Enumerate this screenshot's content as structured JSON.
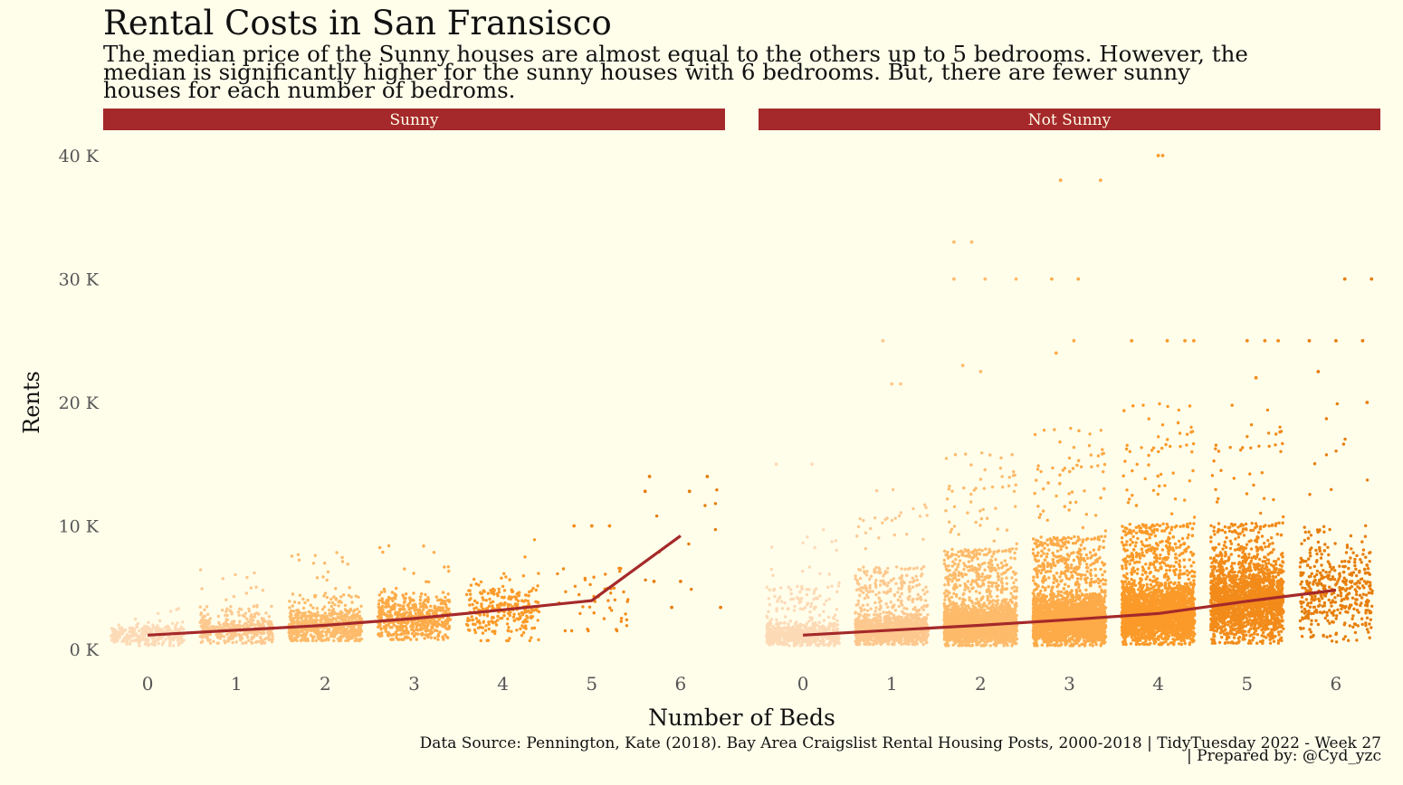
{
  "title": "Rental Costs in San Fransisco",
  "subtitle": "The median price of the Sunny houses are almost equal to the others up to 5 bedrooms. However, the median is significantly higher for the sunny houses with 6 bedrooms. But, there are fewer sunny houses for each number of bedroms.",
  "caption": "Data Source: Pennington, Kate (2018). Bay Area Craigslist Rental Housing Posts, 2000-2018 | TidyTuesday 2022 - Week 27",
  "credit": "| Prepared by: @Cyd_yzc",
  "colors": {
    "background": "#fffeeb",
    "strip": "#a5292a",
    "median_line": "#a5292a",
    "beds": [
      "#fddab6",
      "#fdc88e",
      "#fdbb6b",
      "#fdaa48",
      "#fb9a29",
      "#f28b1a",
      "#e67e0d"
    ]
  },
  "chart_data": {
    "type": "scatter",
    "xlabel": "Number of Beds",
    "ylabel": "Rents",
    "ylim": [
      0,
      40000
    ],
    "y_ticks": [
      {
        "value": 0,
        "label": "0 K"
      },
      {
        "value": 10000,
        "label": "10 K"
      },
      {
        "value": 20000,
        "label": "20 K"
      },
      {
        "value": 30000,
        "label": "30 K"
      },
      {
        "value": 40000,
        "label": "40 K"
      }
    ],
    "categories": [
      "0",
      "1",
      "2",
      "3",
      "4",
      "5",
      "6"
    ],
    "grid": false,
    "panels": [
      {
        "name": "Sunny",
        "median_rent": [
          1150,
          1550,
          1950,
          2500,
          3200,
          3950,
          9200
        ],
        "point_count": [
          300,
          380,
          650,
          560,
          260,
          45,
          9
        ],
        "rent_range": [
          [
            300,
            3400
          ],
          [
            500,
            6500
          ],
          [
            700,
            8300
          ],
          [
            800,
            8500
          ],
          [
            700,
            9000
          ],
          [
            1500,
            10000
          ],
          [
            3500,
            14000
          ]
        ],
        "outliers": [
          [],
          [],
          [],
          [],
          [],
          [
            [
              0.0,
              10000
            ],
            [
              0.2,
              10000
            ],
            [
              -0.2,
              10000
            ]
          ],
          [
            [
              -0.35,
              14000
            ],
            [
              0.3,
              14000
            ],
            [
              -0.4,
              12800
            ],
            [
              0.1,
              12800
            ],
            [
              0.0,
              5500
            ],
            [
              -0.3,
              5500
            ],
            [
              -0.1,
              3400
            ],
            [
              0.45,
              3400
            ]
          ]
        ]
      },
      {
        "name": "Not Sunny",
        "median_rent": [
          1150,
          1550,
          1950,
          2400,
          2900,
          3900,
          4800
        ],
        "point_count": [
          700,
          1400,
          2600,
          3200,
          3000,
          2000,
          420
        ],
        "rent_range": [
          [
            300,
            10000
          ],
          [
            400,
            13000
          ],
          [
            300,
            16000
          ],
          [
            300,
            18000
          ],
          [
            400,
            20000
          ],
          [
            500,
            20000
          ],
          [
            600,
            20000
          ]
        ],
        "outliers": [
          [
            [
              -0.3,
              15000
            ],
            [
              0.1,
              15000
            ]
          ],
          [
            [
              -0.1,
              25000
            ],
            [
              0.0,
              21500
            ],
            [
              0.1,
              21500
            ]
          ],
          [
            [
              -0.3,
              33000
            ],
            [
              -0.1,
              33000
            ],
            [
              -0.3,
              30000
            ],
            [
              0.05,
              30000
            ],
            [
              0.4,
              30000
            ],
            [
              0.0,
              22500
            ],
            [
              -0.2,
              23000
            ]
          ],
          [
            [
              -0.1,
              38000
            ],
            [
              0.35,
              38000
            ],
            [
              -0.2,
              30000
            ],
            [
              0.1,
              30000
            ],
            [
              0.05,
              25000
            ],
            [
              -0.15,
              24000
            ]
          ],
          [
            [
              0.0,
              40000
            ],
            [
              0.05,
              40000
            ],
            [
              -0.3,
              25000
            ],
            [
              0.1,
              25000
            ],
            [
              0.3,
              25000
            ],
            [
              0.4,
              25000
            ]
          ],
          [
            [
              0.0,
              25000
            ],
            [
              0.2,
              25000
            ],
            [
              0.35,
              25000
            ],
            [
              0.1,
              22000
            ]
          ],
          [
            [
              -0.3,
              25000
            ],
            [
              0.0,
              25000
            ],
            [
              0.3,
              25000
            ],
            [
              0.1,
              30000
            ],
            [
              0.4,
              30000
            ],
            [
              -0.2,
              22500
            ],
            [
              0.35,
              20000
            ]
          ]
        ]
      }
    ]
  }
}
